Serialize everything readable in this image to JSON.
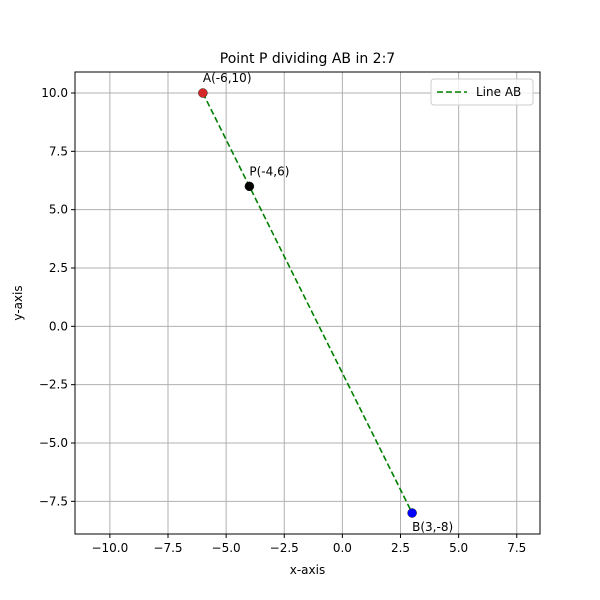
{
  "chart_data": {
    "type": "scatter",
    "title": "Point P dividing AB in 2:7",
    "xlabel": "x-axis",
    "ylabel": "y-axis",
    "xlim": [
      -11.5,
      8.5
    ],
    "ylim": [
      -8.9,
      10.9
    ],
    "x_ticks": [
      -10,
      -7.5,
      -5,
      -2.5,
      0,
      2.5,
      5,
      7.5
    ],
    "x_tick_labels": [
      "−10.0",
      "−7.5",
      "−5.0",
      "−2.5",
      "0.0",
      "2.5",
      "5.0",
      "7.5"
    ],
    "y_ticks": [
      -7.5,
      -5,
      -2.5,
      0,
      2.5,
      5,
      7.5,
      10
    ],
    "y_tick_labels": [
      "−7.5",
      "−5.0",
      "−2.5",
      "0.0",
      "2.5",
      "5.0",
      "7.5",
      "10.0"
    ],
    "grid": true,
    "legend_position": "top-right",
    "series": [
      {
        "name": "Line AB",
        "kind": "line",
        "style": "dashed",
        "color": "#008000",
        "x": [
          -6,
          3
        ],
        "y": [
          10,
          -8
        ]
      }
    ],
    "points": [
      {
        "x": -6,
        "y": 10,
        "color": "#d62728",
        "label": "A(-6,10)",
        "label_pos": "above"
      },
      {
        "x": -4,
        "y": 6,
        "color": "#000000",
        "label": "P(-4,6)",
        "label_pos": "above"
      },
      {
        "x": 3,
        "y": -8,
        "color": "#0000ff",
        "label": "B(3,-8)",
        "label_pos": "below"
      }
    ]
  }
}
